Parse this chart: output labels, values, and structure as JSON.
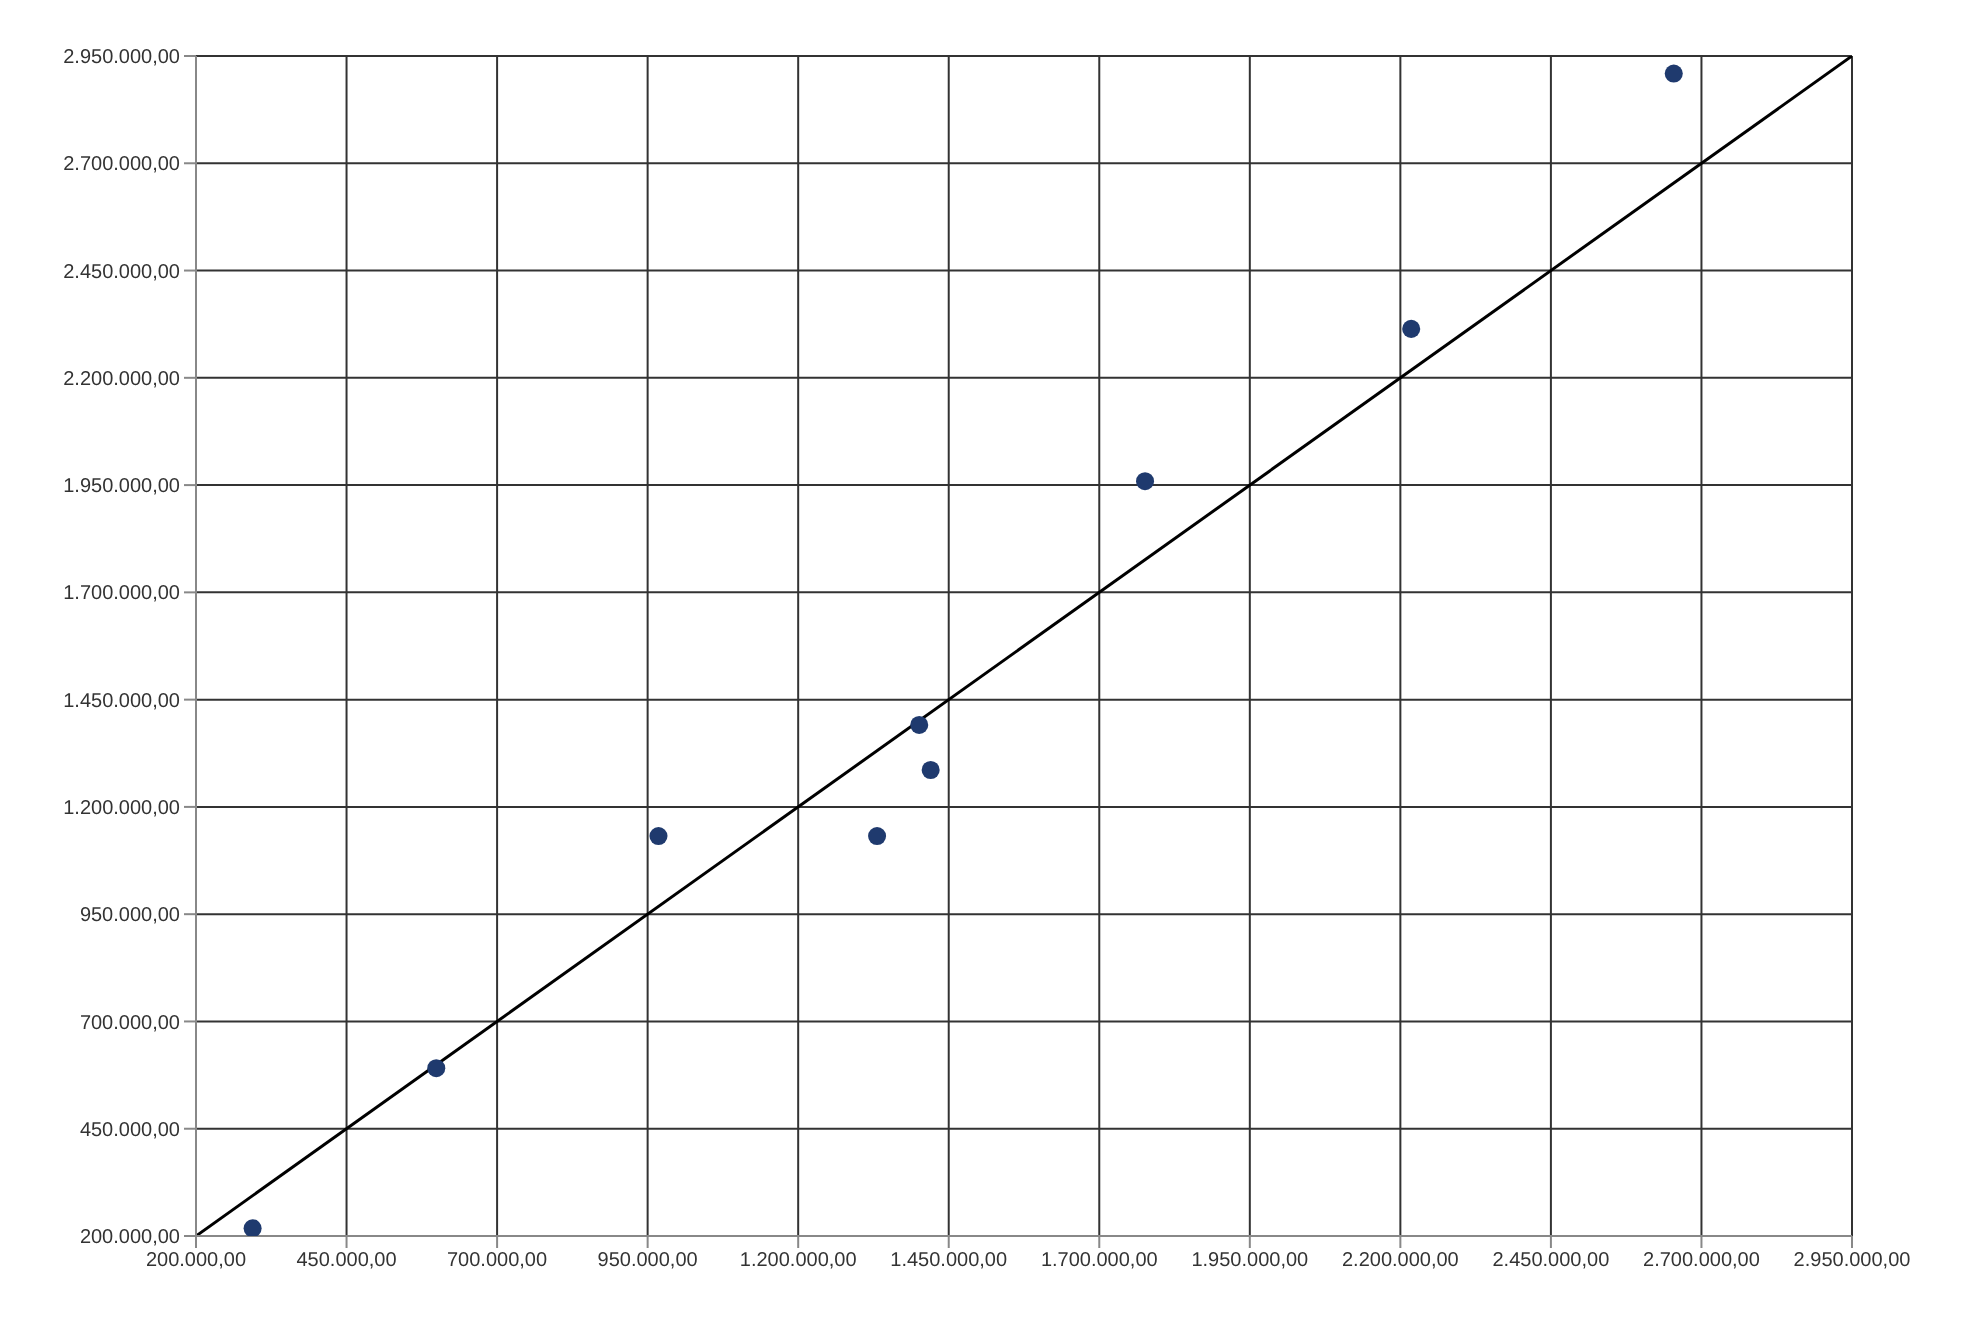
{
  "chart_data": {
    "type": "scatter",
    "x": [
      294000,
      599000,
      968000,
      1331000,
      1401000,
      1420000,
      1776000,
      2218000,
      2654000
    ],
    "series": [
      {
        "color": "#1f3a6e",
        "values": [
          218000,
          591000,
          1132000,
          1132000,
          1391000,
          1286000,
          1959000,
          2314000,
          2909000
        ]
      },
      {
        "type": "line",
        "color": "#000000",
        "x": [
          200000,
          2950000
        ],
        "values": [
          200000,
          2950000
        ],
        "marker": "none",
        "line_style": "solid"
      }
    ],
    "xlim": [
      200000,
      2950000
    ],
    "ylim": [
      200000,
      2950000
    ],
    "xticks": [
      {
        "value": 200000,
        "label": "200.000,00"
      },
      {
        "value": 450000,
        "label": "450.000,00"
      },
      {
        "value": 700000,
        "label": "700.000,00"
      },
      {
        "value": 950000,
        "label": "950.000,00"
      },
      {
        "value": 1200000,
        "label": "1.200.000,00"
      },
      {
        "value": 1450000,
        "label": "1.450.000,00"
      },
      {
        "value": 1700000,
        "label": "1.700.000,00"
      },
      {
        "value": 1950000,
        "label": "1.950.000,00"
      },
      {
        "value": 2200000,
        "label": "2.200.000,00"
      },
      {
        "value": 2450000,
        "label": "2.450.000,00"
      },
      {
        "value": 2700000,
        "label": "2.700.000,00"
      },
      {
        "value": 2950000,
        "label": "2.950.000,00"
      }
    ],
    "yticks": [
      {
        "value": 200000,
        "label": "200.000,00"
      },
      {
        "value": 450000,
        "label": "450.000,00"
      },
      {
        "value": 700000,
        "label": "700.000,00"
      },
      {
        "value": 950000,
        "label": "950.000,00"
      },
      {
        "value": 1200000,
        "label": "1.200.000,00"
      },
      {
        "value": 1450000,
        "label": "1.450.000,00"
      },
      {
        "value": 1700000,
        "label": "1.700.000,00"
      },
      {
        "value": 1950000,
        "label": "1.950.000,00"
      },
      {
        "value": 2200000,
        "label": "2.200.000,00"
      },
      {
        "value": 2450000,
        "label": "2.450.000,00"
      },
      {
        "value": 2700000,
        "label": "2.700.000,00"
      },
      {
        "value": 2950000,
        "label": "2.950.000,00"
      }
    ],
    "grid": true,
    "marker": "circle"
  }
}
